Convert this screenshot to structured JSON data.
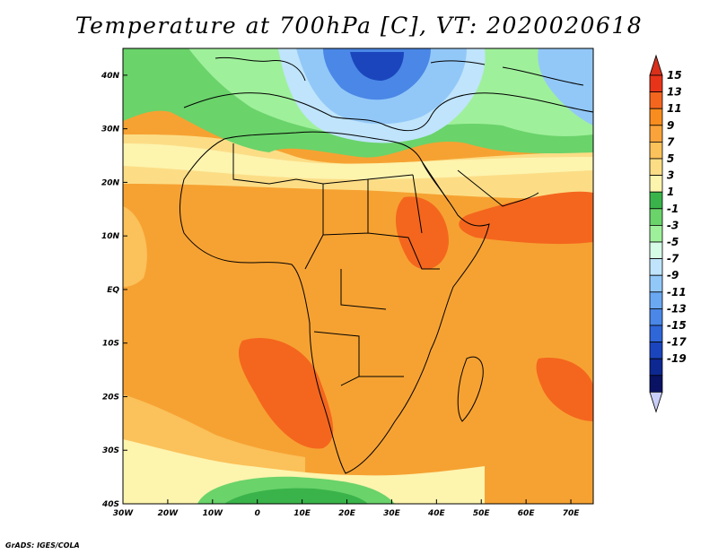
{
  "title": "Temperature at 700hPa [C], VT: 2020020618",
  "credit": "GrADS: IGES/COLA",
  "map": {
    "lon_range": [
      -30,
      75
    ],
    "lat_range": [
      -40,
      45
    ],
    "lat_ticks": [
      {
        "value": 40,
        "label": "40N"
      },
      {
        "value": 30,
        "label": "30N"
      },
      {
        "value": 20,
        "label": "20N"
      },
      {
        "value": 10,
        "label": "10N"
      },
      {
        "value": 0,
        "label": "EQ"
      },
      {
        "value": -10,
        "label": "10S"
      },
      {
        "value": -20,
        "label": "20S"
      },
      {
        "value": -30,
        "label": "30S"
      },
      {
        "value": -40,
        "label": "40S"
      }
    ],
    "lon_ticks": [
      {
        "value": -30,
        "label": "30W"
      },
      {
        "value": -20,
        "label": "20W"
      },
      {
        "value": -10,
        "label": "10W"
      },
      {
        "value": 0,
        "label": "0"
      },
      {
        "value": 10,
        "label": "10E"
      },
      {
        "value": 20,
        "label": "20E"
      },
      {
        "value": 30,
        "label": "30E"
      },
      {
        "value": 40,
        "label": "40E"
      },
      {
        "value": 50,
        "label": "50E"
      },
      {
        "value": 60,
        "label": "60E"
      },
      {
        "value": 70,
        "label": "70E"
      }
    ]
  },
  "colorbar": {
    "labels": [
      "15",
      "13",
      "11",
      "9",
      "7",
      "5",
      "3",
      "1",
      "-1",
      "-3",
      "-5",
      "-7",
      "-9",
      "-11",
      "-13",
      "-15",
      "-17",
      "-19"
    ],
    "colors": [
      "#e8351a",
      "#f4661e",
      "#f98c1e",
      "#f9a33a",
      "#fbc15a",
      "#fcdd86",
      "#fdf4ae",
      "#3ab44a",
      "#6ad36a",
      "#9ff09b",
      "#d6fbe6",
      "#bfe4fb",
      "#92c8f8",
      "#6aa8f2",
      "#4a87e6",
      "#2f66d8",
      "#1b45bd",
      "#0e2891",
      "#0a1263"
    ],
    "top_color": "#d8301a",
    "bottom_color": "#c8cef8"
  }
}
